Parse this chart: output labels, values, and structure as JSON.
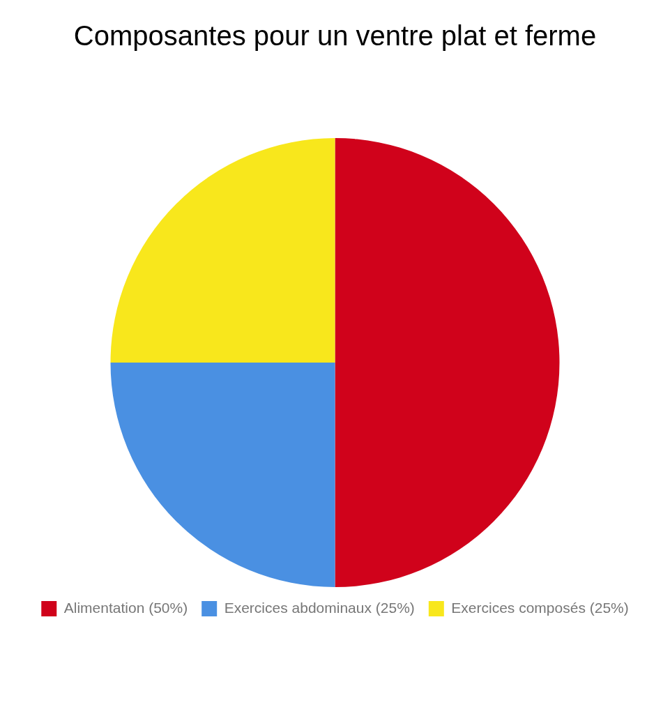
{
  "chart_data": {
    "type": "pie",
    "title": "Composantes pour un ventre plat et ferme",
    "categories": [
      "Alimentation (50%)",
      "Exercices abdominaux (25%)",
      "Exercices composés (25%)"
    ],
    "values": [
      50,
      25,
      25
    ],
    "colors": [
      "#d0021b",
      "#4a90e2",
      "#f8e71c"
    ],
    "legend": "bottom"
  }
}
